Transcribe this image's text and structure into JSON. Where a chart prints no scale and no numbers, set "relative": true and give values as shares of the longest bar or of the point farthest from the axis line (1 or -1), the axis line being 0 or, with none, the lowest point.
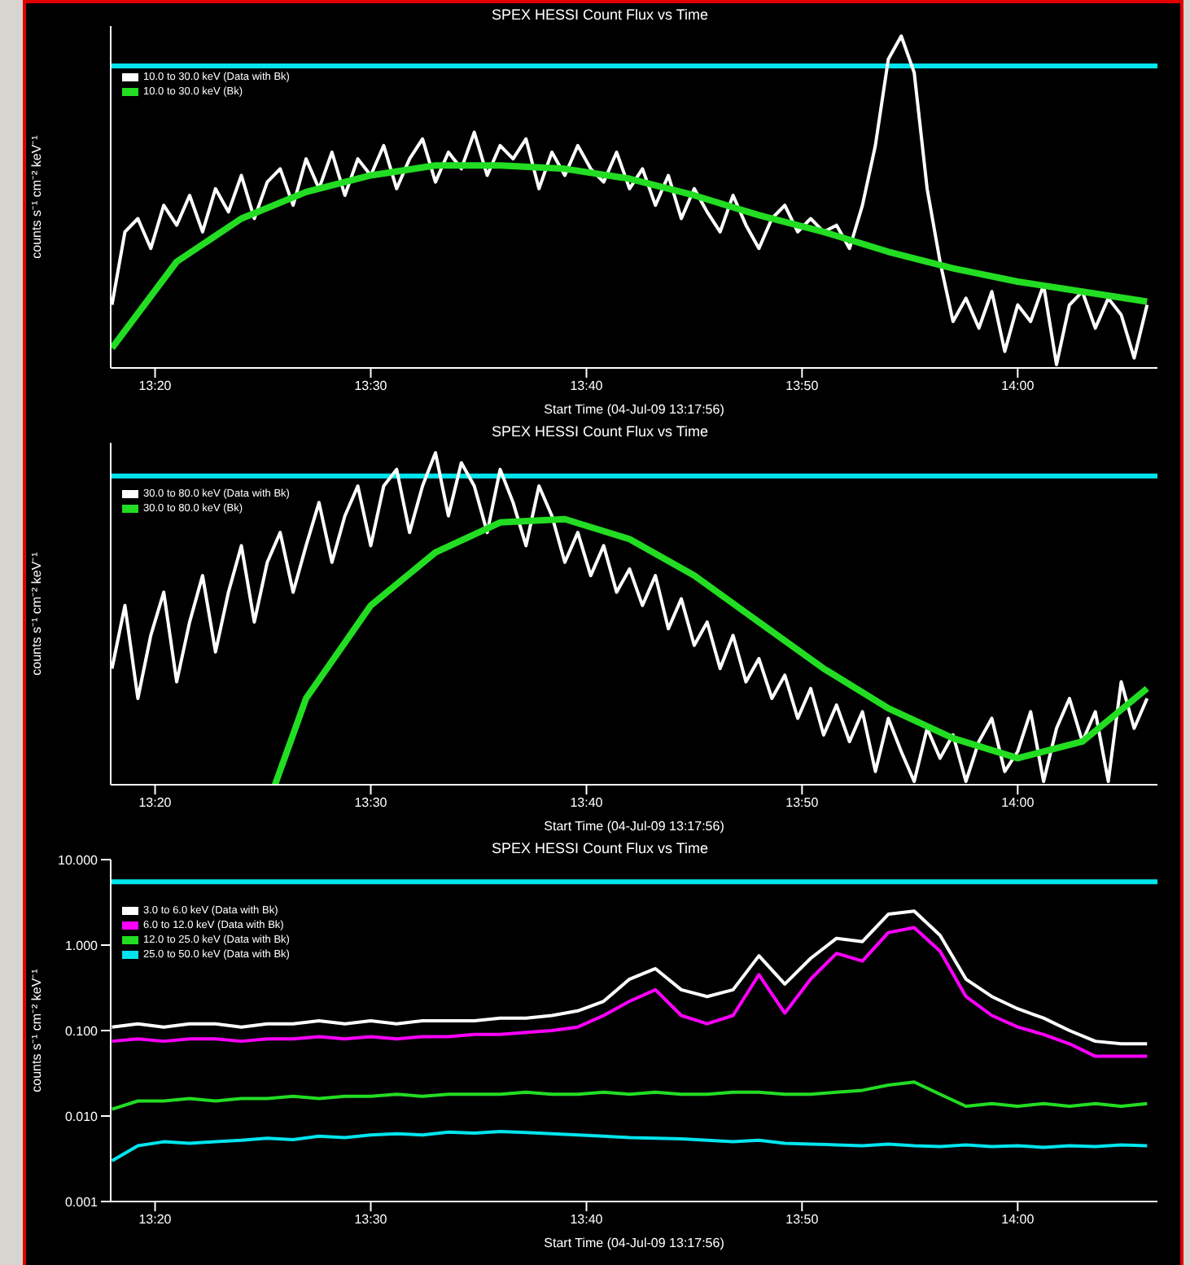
{
  "chart_data": [
    {
      "type": "line",
      "relative": true,
      "title": "SPEX HESSI Count Flux vs Time",
      "xlabel": "Start Time (04-Jul-09 13:17:56)",
      "ylabel": "counts s⁻¹ cm⁻² keV⁻¹",
      "legend": "top left",
      "xlim": [
        13.299,
        14.108
      ],
      "xticks": [
        {
          "value": 13.3333,
          "label": "13:20"
        },
        {
          "value": 13.5,
          "label": "13:30"
        },
        {
          "value": 13.6667,
          "label": "13:40"
        },
        {
          "value": 13.8333,
          "label": "13:50"
        },
        {
          "value": 14.0,
          "label": "14:00"
        }
      ],
      "ref_lines": [
        {
          "axis": "y",
          "value": 0.91,
          "color": "#00e5ee"
        }
      ],
      "series": [
        {
          "name": "10.0 to 30.0 keV (Data with Bk)",
          "color": "#ffffff",
          "x": [
            13.3,
            13.31,
            13.32,
            13.33,
            13.34,
            13.35,
            13.36,
            13.37,
            13.38,
            13.39,
            13.4,
            13.41,
            13.42,
            13.43,
            13.44,
            13.45,
            13.46,
            13.47,
            13.48,
            13.49,
            13.5,
            13.51,
            13.52,
            13.53,
            13.54,
            13.55,
            13.56,
            13.57,
            13.58,
            13.59,
            13.6,
            13.61,
            13.62,
            13.63,
            13.64,
            13.65,
            13.66,
            13.67,
            13.68,
            13.69,
            13.7,
            13.71,
            13.72,
            13.73,
            13.74,
            13.75,
            13.76,
            13.77,
            13.78,
            13.79,
            13.8,
            13.81,
            13.82,
            13.83,
            13.84,
            13.85,
            13.86,
            13.87,
            13.88,
            13.89,
            13.9,
            13.91,
            13.92,
            13.93,
            13.94,
            13.95,
            13.96,
            13.97,
            13.98,
            13.99,
            14.0,
            14.01,
            14.02,
            14.03,
            14.04,
            14.05,
            14.06,
            14.07,
            14.08,
            14.09,
            14.1
          ],
          "values": [
            0.19,
            0.41,
            0.45,
            0.36,
            0.49,
            0.43,
            0.52,
            0.41,
            0.54,
            0.47,
            0.58,
            0.45,
            0.56,
            0.6,
            0.49,
            0.63,
            0.54,
            0.65,
            0.52,
            0.63,
            0.58,
            0.67,
            0.54,
            0.63,
            0.69,
            0.56,
            0.65,
            0.6,
            0.71,
            0.58,
            0.67,
            0.63,
            0.69,
            0.54,
            0.65,
            0.58,
            0.67,
            0.6,
            0.56,
            0.65,
            0.54,
            0.6,
            0.49,
            0.58,
            0.45,
            0.54,
            0.47,
            0.41,
            0.52,
            0.43,
            0.36,
            0.45,
            0.49,
            0.41,
            0.45,
            0.41,
            0.43,
            0.36,
            0.49,
            0.67,
            0.93,
            1.0,
            0.89,
            0.54,
            0.32,
            0.14,
            0.21,
            0.12,
            0.23,
            0.05,
            0.19,
            0.14,
            0.25,
            0.01,
            0.19,
            0.23,
            0.12,
            0.21,
            0.16,
            0.03,
            0.19
          ]
        },
        {
          "name": "10.0 to 30.0 keV (Bk)",
          "color": "#22dd22",
          "x": [
            13.3,
            13.35,
            13.4,
            13.45,
            13.5,
            13.55,
            13.6,
            13.65,
            13.7,
            13.75,
            13.8,
            13.85,
            13.9,
            13.95,
            14.0,
            14.05,
            14.1
          ],
          "values": [
            0.06,
            0.32,
            0.45,
            0.53,
            0.58,
            0.61,
            0.61,
            0.6,
            0.57,
            0.52,
            0.46,
            0.41,
            0.35,
            0.3,
            0.26,
            0.23,
            0.2
          ]
        }
      ]
    },
    {
      "type": "line",
      "relative": true,
      "title": "SPEX HESSI Count Flux vs Time",
      "xlabel": "Start Time (04-Jul-09 13:17:56)",
      "ylabel": "counts s⁻¹ cm⁻² keV⁻¹",
      "legend": "top left",
      "xlim": [
        13.299,
        14.108
      ],
      "xticks": [
        {
          "value": 13.3333,
          "label": "13:20"
        },
        {
          "value": 13.5,
          "label": "13:30"
        },
        {
          "value": 13.6667,
          "label": "13:40"
        },
        {
          "value": 13.8333,
          "label": "13:50"
        },
        {
          "value": 14.0,
          "label": "14:00"
        }
      ],
      "ref_lines": [
        {
          "axis": "y",
          "value": 0.93,
          "color": "#00e5ee"
        }
      ],
      "series": [
        {
          "name": "30.0 to 80.0 keV (Data with Bk)",
          "color": "#ffffff",
          "x": [
            13.3,
            13.31,
            13.32,
            13.33,
            13.34,
            13.35,
            13.36,
            13.37,
            13.38,
            13.39,
            13.4,
            13.41,
            13.42,
            13.43,
            13.44,
            13.45,
            13.46,
            13.47,
            13.48,
            13.49,
            13.5,
            13.51,
            13.52,
            13.53,
            13.54,
            13.55,
            13.56,
            13.57,
            13.58,
            13.59,
            13.6,
            13.61,
            13.62,
            13.63,
            13.64,
            13.65,
            13.66,
            13.67,
            13.68,
            13.69,
            13.7,
            13.71,
            13.72,
            13.73,
            13.74,
            13.75,
            13.76,
            13.77,
            13.78,
            13.79,
            13.8,
            13.81,
            13.82,
            13.83,
            13.84,
            13.85,
            13.86,
            13.87,
            13.88,
            13.89,
            13.9,
            13.91,
            13.92,
            13.93,
            13.94,
            13.95,
            13.96,
            13.97,
            13.98,
            13.99,
            14.0,
            14.01,
            14.02,
            14.03,
            14.04,
            14.05,
            14.06,
            14.07,
            14.08,
            14.09,
            14.1
          ],
          "values": [
            0.35,
            0.54,
            0.26,
            0.45,
            0.58,
            0.31,
            0.49,
            0.63,
            0.4,
            0.58,
            0.72,
            0.49,
            0.67,
            0.76,
            0.58,
            0.72,
            0.85,
            0.67,
            0.81,
            0.9,
            0.72,
            0.9,
            0.95,
            0.76,
            0.9,
            1.0,
            0.81,
            0.97,
            0.9,
            0.76,
            0.95,
            0.85,
            0.72,
            0.9,
            0.81,
            0.67,
            0.76,
            0.63,
            0.72,
            0.58,
            0.65,
            0.54,
            0.63,
            0.47,
            0.56,
            0.42,
            0.49,
            0.35,
            0.45,
            0.31,
            0.38,
            0.26,
            0.33,
            0.2,
            0.29,
            0.15,
            0.24,
            0.13,
            0.22,
            0.04,
            0.2,
            0.1,
            0.01,
            0.17,
            0.08,
            0.15,
            0.01,
            0.13,
            0.2,
            0.04,
            0.1,
            0.22,
            0.01,
            0.17,
            0.26,
            0.13,
            0.22,
            0.01,
            0.31,
            0.17,
            0.26
          ]
        },
        {
          "name": "30.0 to 80.0 keV (Bk)",
          "color": "#22dd22",
          "x": [
            13.426,
            13.45,
            13.5,
            13.55,
            13.6,
            13.65,
            13.7,
            13.75,
            13.8,
            13.85,
            13.9,
            13.95,
            14.0,
            14.05,
            14.1
          ],
          "values": [
            0,
            0.26,
            0.54,
            0.7,
            0.79,
            0.8,
            0.74,
            0.63,
            0.49,
            0.35,
            0.23,
            0.14,
            0.08,
            0.13,
            0.29
          ]
        }
      ]
    },
    {
      "type": "line",
      "log": true,
      "title": "SPEX HESSI Count Flux vs Time",
      "xlabel": "Start Time (04-Jul-09 13:17:56)",
      "ylabel": "counts s⁻¹ cm⁻² keV⁻¹",
      "legend": "top left",
      "xlim": [
        13.299,
        14.108
      ],
      "xticks": [
        {
          "value": 13.3333,
          "label": "13:20"
        },
        {
          "value": 13.5,
          "label": "13:30"
        },
        {
          "value": 13.6667,
          "label": "13:40"
        },
        {
          "value": 13.8333,
          "label": "13:50"
        },
        {
          "value": 14.0,
          "label": "14:00"
        }
      ],
      "ylim": [
        0.001,
        10
      ],
      "yticks": [
        {
          "value": 0.001,
          "label": "0.001"
        },
        {
          "value": 0.01,
          "label": "0.010"
        },
        {
          "value": 0.1,
          "label": "0.100"
        },
        {
          "value": 1,
          "label": "1.000"
        },
        {
          "value": 10,
          "label": "10.000"
        }
      ],
      "ref_lines": [
        {
          "axis": "y",
          "value": 5.5,
          "color": "#00e5ee"
        }
      ],
      "x": [
        13.3,
        13.32,
        13.34,
        13.36,
        13.38,
        13.4,
        13.42,
        13.44,
        13.46,
        13.48,
        13.5,
        13.52,
        13.54,
        13.56,
        13.58,
        13.6,
        13.62,
        13.64,
        13.66,
        13.68,
        13.7,
        13.72,
        13.74,
        13.76,
        13.78,
        13.8,
        13.82,
        13.84,
        13.86,
        13.88,
        13.9,
        13.92,
        13.94,
        13.96,
        13.98,
        14.0,
        14.02,
        14.04,
        14.06,
        14.08,
        14.1
      ],
      "series": [
        {
          "name": "3.0 to 6.0 keV (Data with Bk)",
          "color": "#ffffff",
          "values": [
            0.11,
            0.12,
            0.11,
            0.12,
            0.12,
            0.11,
            0.12,
            0.12,
            0.13,
            0.12,
            0.13,
            0.12,
            0.13,
            0.13,
            0.13,
            0.14,
            0.14,
            0.15,
            0.17,
            0.22,
            0.4,
            0.53,
            0.3,
            0.25,
            0.3,
            0.75,
            0.35,
            0.7,
            1.2,
            1.1,
            2.3,
            2.5,
            1.3,
            0.4,
            0.25,
            0.18,
            0.14,
            0.1,
            0.075,
            0.07,
            0.07
          ]
        },
        {
          "name": "6.0 to 12.0 keV (Data with Bk)",
          "color": "#ff00ff",
          "values": [
            0.075,
            0.08,
            0.075,
            0.08,
            0.08,
            0.075,
            0.08,
            0.08,
            0.085,
            0.08,
            0.085,
            0.08,
            0.085,
            0.085,
            0.09,
            0.09,
            0.095,
            0.1,
            0.11,
            0.15,
            0.22,
            0.3,
            0.15,
            0.12,
            0.15,
            0.45,
            0.16,
            0.4,
            0.8,
            0.65,
            1.4,
            1.6,
            0.85,
            0.25,
            0.15,
            0.11,
            0.09,
            0.07,
            0.05,
            0.05,
            0.05
          ]
        },
        {
          "name": "12.0 to 25.0 keV (Data with Bk)",
          "color": "#22dd22",
          "values": [
            0.012,
            0.015,
            0.015,
            0.016,
            0.015,
            0.016,
            0.016,
            0.017,
            0.016,
            0.017,
            0.017,
            0.018,
            0.017,
            0.018,
            0.018,
            0.018,
            0.019,
            0.018,
            0.018,
            0.019,
            0.018,
            0.019,
            0.018,
            0.018,
            0.019,
            0.019,
            0.018,
            0.018,
            0.019,
            0.02,
            0.023,
            0.025,
            0.018,
            0.013,
            0.014,
            0.013,
            0.014,
            0.013,
            0.014,
            0.013,
            0.014
          ]
        },
        {
          "name": "25.0 to 50.0 keV (Data with Bk)",
          "color": "#00e5ee",
          "values": [
            0.003,
            0.0045,
            0.005,
            0.0048,
            0.005,
            0.0052,
            0.0055,
            0.0053,
            0.0058,
            0.0056,
            0.006,
            0.0062,
            0.006,
            0.0065,
            0.0063,
            0.0066,
            0.0064,
            0.0062,
            0.006,
            0.0058,
            0.0056,
            0.0055,
            0.0054,
            0.0052,
            0.005,
            0.0052,
            0.0048,
            0.0047,
            0.0046,
            0.0045,
            0.0047,
            0.0045,
            0.0044,
            0.0046,
            0.0044,
            0.0045,
            0.0043,
            0.0045,
            0.0044,
            0.0046,
            0.0045
          ]
        }
      ]
    }
  ]
}
